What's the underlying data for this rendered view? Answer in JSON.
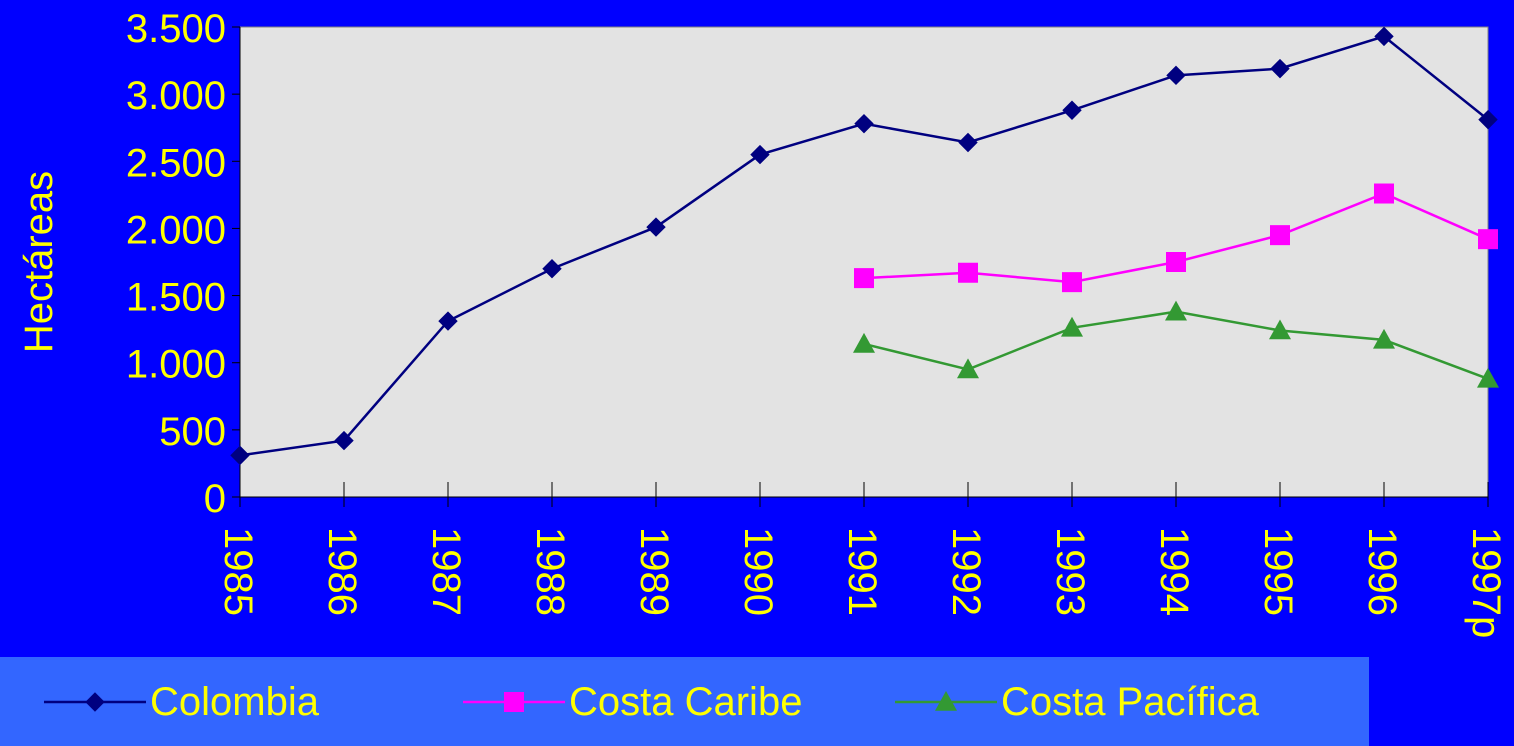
{
  "chart_data": {
    "type": "line",
    "title": "",
    "ylabel": "Hectáreas",
    "xlabel": "",
    "categories": [
      "1985",
      "1986",
      "1987",
      "1988",
      "1989",
      "1990",
      "1991",
      "1992",
      "1993",
      "1994",
      "1995",
      "1996",
      "1997p"
    ],
    "ylim": [
      0,
      3500
    ],
    "yticks": [
      0,
      500,
      1000,
      1500,
      2000,
      2500,
      3000,
      3500
    ],
    "ytick_labels": [
      "0",
      "500",
      "1.000",
      "1.500",
      "2.000",
      "2.500",
      "3.000",
      "3.500"
    ],
    "grid": false,
    "legend_position": "bottom",
    "series": [
      {
        "name": "Colombia",
        "color": "#000080",
        "marker": "diamond",
        "values": [
          310,
          420,
          1310,
          1700,
          2010,
          2550,
          2780,
          2640,
          2880,
          3140,
          3190,
          3430,
          2810
        ]
      },
      {
        "name": "Costa Caribe",
        "color": "#FF00FF",
        "marker": "square",
        "values": [
          null,
          null,
          null,
          null,
          null,
          null,
          1630,
          1670,
          1600,
          1750,
          1950,
          2260,
          1920
        ]
      },
      {
        "name": "Costa Pacífica",
        "color": "#339933",
        "marker": "triangle",
        "values": [
          null,
          null,
          null,
          null,
          null,
          null,
          1140,
          950,
          1260,
          1380,
          1240,
          1170,
          880
        ]
      }
    ],
    "colors": {
      "background": "#0000FF",
      "plot_area": "#E3E3E3",
      "text": "#FFFF00",
      "legend_bg": "#3366FF"
    }
  }
}
